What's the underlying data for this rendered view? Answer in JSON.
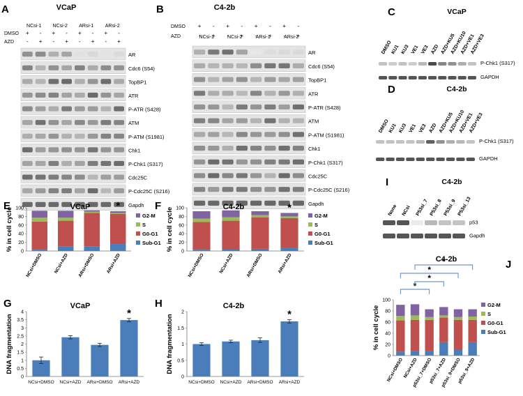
{
  "panels": {
    "A": {
      "letter": "A",
      "title": "VCaP",
      "lanes": [
        "NCsi-1",
        "NCsi-2",
        "ARsi-1",
        "ARsi-2"
      ],
      "row_labels": [
        "DMSO",
        "AZD"
      ],
      "dmso": [
        "+",
        "-",
        "+",
        "-",
        "+",
        "-",
        "+",
        "-"
      ],
      "azd": [
        "-",
        "+",
        "-",
        "+",
        "-",
        "+",
        "-",
        "+"
      ],
      "proteins": [
        "AR",
        "Cdc6 (S54)",
        "TopBP1",
        "ATR",
        "P-ATR (S428)",
        "ATM",
        "P-ATM (S1981)",
        "Chk1",
        "P-Chk1 (S317)",
        "Cdc25C",
        "P-Cdc25C (S216)",
        "Gapdh"
      ]
    },
    "B": {
      "letter": "B",
      "title": "C4-2b",
      "lanes": [
        "NCsi-1",
        "NCsi-2",
        "ARsi-1",
        "ARsi-2"
      ],
      "row_labels": [
        "DMSO",
        "AZD"
      ],
      "dmso": [
        "+",
        "-",
        "+",
        "-",
        "+",
        "-",
        "+",
        "-"
      ],
      "azd": [
        "-",
        "+",
        "-",
        "+",
        "-",
        "+",
        "-",
        "+"
      ],
      "proteins": [
        "AR",
        "Cdc6 (S54)",
        "TopBP1",
        "ATR",
        "P-ATR (S428)",
        "ATM",
        "P-ATM (S1981)",
        "Chk1",
        "P-Chk1 (S317)",
        "Cdc25C",
        "P-Cdc25C (S216)",
        "Gapdh"
      ]
    },
    "C": {
      "letter": "C",
      "title": "VCaP",
      "lanes": [
        "DMSO",
        "KU1",
        "KU3",
        "VE1",
        "VE3",
        "AZD",
        "AZD+KU5",
        "AZD+KU10",
        "AZD+VE1",
        "AZD+VE3"
      ],
      "proteins": [
        "P-Chk1 (S317)",
        "GAPDH"
      ]
    },
    "D": {
      "letter": "D",
      "title": "C4-2b",
      "lanes": [
        "DMSO",
        "KU1",
        "KU3",
        "VE1",
        "VE3",
        "AZD",
        "AZD+KU5",
        "AZD+KU10",
        "AZD+VE1",
        "AZD+VE3"
      ],
      "proteins": [
        "P-Chk1 (S317)",
        "GAPDH"
      ]
    },
    "I": {
      "letter": "I",
      "title": "C4-2b",
      "lanes": [
        "None",
        "NCsi",
        "P53si_7",
        "P53si_8",
        "P53si_9",
        "P53si_13"
      ],
      "proteins": [
        "p53",
        "Gapdh"
      ]
    }
  },
  "chart_data": [
    {
      "id": "E",
      "letter": "E",
      "type": "bar",
      "stacked": true,
      "title": "VCaP",
      "ylabel": "% in cell cycle",
      "ylim": [
        0,
        100
      ],
      "yticks": [
        "0",
        "20",
        "40",
        "60",
        "80",
        "100"
      ],
      "categories": [
        "NCsi+DMSO",
        "NCsi+AZD",
        "ARsi+DMSO",
        "ARsi+AZD"
      ],
      "series": [
        {
          "name": "Sub-G1",
          "color": "#4a7ebb",
          "values": [
            3,
            10,
            11,
            16
          ]
        },
        {
          "name": "G0-G1",
          "color": "#c0504d",
          "values": [
            65,
            60,
            77,
            70
          ]
        },
        {
          "name": "S",
          "color": "#9bbb59",
          "values": [
            9,
            7,
            3,
            2
          ]
        },
        {
          "name": "G2-M",
          "color": "#8064a2",
          "values": [
            16,
            16,
            3,
            4
          ]
        }
      ],
      "legend": [
        "G2-M",
        "S",
        "G0-G1",
        "Sub-G1"
      ],
      "annotations": [
        "*"
      ]
    },
    {
      "id": "F",
      "letter": "F",
      "type": "bar",
      "stacked": true,
      "title": "C4-2b",
      "ylabel": "% in cell cycle",
      "ylim": [
        0,
        100
      ],
      "yticks": [
        "0",
        "20",
        "40",
        "60",
        "80",
        "100"
      ],
      "categories": [
        "NCsi+DMSO",
        "NCsi+AZD",
        "ARsi+DMSO",
        "ARsi+AZD"
      ],
      "series": [
        {
          "name": "Sub-G1",
          "color": "#4a7ebb",
          "values": [
            3,
            4,
            5,
            8
          ]
        },
        {
          "name": "G0-G1",
          "color": "#c0504d",
          "values": [
            64,
            66,
            73,
            68
          ]
        },
        {
          "name": "S",
          "color": "#9bbb59",
          "values": [
            8,
            8,
            5,
            4
          ]
        },
        {
          "name": "G2-M",
          "color": "#8064a2",
          "values": [
            17,
            16,
            9,
            8
          ]
        }
      ],
      "legend": [
        "G2-M",
        "S",
        "G0-G1",
        "Sub-G1"
      ],
      "annotations": [
        "*"
      ]
    },
    {
      "id": "G",
      "letter": "G",
      "type": "bar",
      "title": "VCaP",
      "ylabel": "DNA fragmentation",
      "ylim": [
        0,
        4
      ],
      "yticks": [
        "0",
        "0.5",
        "1",
        "1.5",
        "2",
        "2.5",
        "3",
        "3.5",
        "4"
      ],
      "categories": [
        "NCsi+DMSO",
        "NCsi+AZD",
        "ARsi+DMSO",
        "ARsi+AZD"
      ],
      "values": [
        1.0,
        2.42,
        1.95,
        3.48
      ],
      "errors": [
        0.2,
        0.1,
        0.1,
        0.1
      ],
      "color": "#4a7ebb",
      "annotations": [
        "*"
      ]
    },
    {
      "id": "H",
      "letter": "H",
      "type": "bar",
      "title": "C4-2b",
      "ylabel": "DNA fragmentation",
      "ylim": [
        0,
        2
      ],
      "yticks": [
        "0",
        "0.5",
        "1",
        "1.5",
        "2"
      ],
      "categories": [
        "NCsi+DMSO",
        "NCsi+AZD",
        "ARsi+DMSO",
        "ARsi+AZD"
      ],
      "values": [
        1.0,
        1.08,
        1.12,
        1.7
      ],
      "errors": [
        0.04,
        0.04,
        0.07,
        0.05
      ],
      "color": "#4a7ebb",
      "annotations": [
        "*"
      ]
    },
    {
      "id": "J",
      "letter": "J",
      "type": "bar",
      "stacked": true,
      "title": "C4-2b",
      "ylabel": "% in cell cycle",
      "ylim": [
        0,
        100
      ],
      "yticks": [
        "0",
        "20",
        "40",
        "60",
        "80",
        "100"
      ],
      "categories": [
        "NCsi+DMSO",
        "NCsi+AZD",
        "p53si_7+DMSO",
        "p53si_7+AZD",
        "p53si_9+DMSO",
        "p53si_9+AZD"
      ],
      "series": [
        {
          "name": "Sub-G1",
          "color": "#4a7ebb",
          "values": [
            7,
            8,
            8,
            24,
            10,
            24
          ]
        },
        {
          "name": "G0-G1",
          "color": "#c0504d",
          "values": [
            56,
            56,
            56,
            44,
            54,
            40
          ]
        },
        {
          "name": "S",
          "color": "#9bbb59",
          "values": [
            8,
            8,
            5,
            4,
            5,
            6
          ]
        },
        {
          "name": "G2-M",
          "color": "#8064a2",
          "values": [
            20,
            20,
            14,
            15,
            14,
            13
          ]
        }
      ],
      "legend": [
        "G2-M",
        "S",
        "G0-G1",
        "Sub-G1"
      ],
      "annotations": [
        "*",
        "*",
        "*",
        "*"
      ]
    }
  ]
}
